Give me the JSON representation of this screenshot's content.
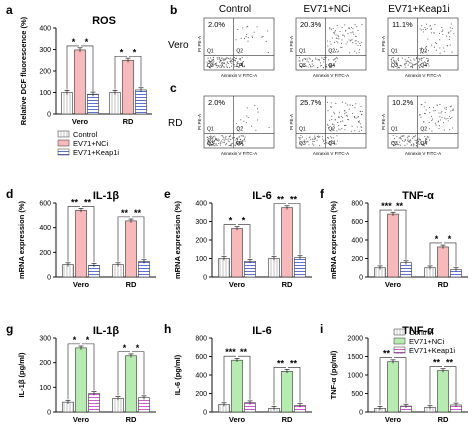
{
  "legend_labels": [
    "Control",
    "EV71+NCi",
    "EV71+Keap1i"
  ],
  "colors": {
    "control": "#ffffff",
    "pink": "#f7b9b9",
    "green": "#b6ecb0",
    "hatch_blue": "#5b6fd6",
    "hatch_pink": "#d05ad0",
    "control_hatch": "#888888"
  },
  "flow": {
    "row_labels": [
      "b",
      "c"
    ],
    "col_titles": [
      "Control",
      "EV71+NCi",
      "EV71+Keap1i"
    ],
    "rows": [
      {
        "label": "Vero",
        "percents": [
          "2.0%",
          "20.3%",
          "11.1%"
        ]
      },
      {
        "label": "RD",
        "percents": [
          "2.0%",
          "25.7%",
          "10.2%"
        ]
      }
    ],
    "x_axis": "Annexin V FITC-A",
    "y_axis": "PI PE-A",
    "quadrants": [
      "Q1",
      "Q2",
      "Q3",
      "Q4"
    ]
  },
  "chart_data": [
    {
      "panel": "a",
      "type": "bar",
      "title": "ROS",
      "ylabel": "Relative DCF fluorescence (%)",
      "ylim": [
        0,
        400
      ],
      "yticks": [
        0,
        100,
        200,
        300,
        400
      ],
      "categories": [
        "Vero",
        "RD"
      ],
      "series": [
        {
          "name": "Control",
          "values": [
            100,
            100
          ]
        },
        {
          "name": "EV71+NCi",
          "values": [
            298,
            250
          ]
        },
        {
          "name": "EV71+Keap1i",
          "values": [
            92,
            112
          ]
        }
      ],
      "significance": [
        [
          "*",
          "*"
        ],
        [
          "*",
          "*"
        ]
      ],
      "legend": "right"
    },
    {
      "panel": "d",
      "type": "bar",
      "title": "IL-1β",
      "ylabel": "mRNA expression (%)",
      "ylim": [
        0,
        600
      ],
      "yticks": [
        0,
        200,
        400,
        600
      ],
      "categories": [
        "Vero",
        "RD"
      ],
      "series": [
        {
          "name": "Control",
          "values": [
            100,
            100
          ]
        },
        {
          "name": "EV71+NCi",
          "values": [
            540,
            455
          ]
        },
        {
          "name": "EV71+Keap1i",
          "values": [
            95,
            125
          ]
        }
      ],
      "significance": [
        [
          "**",
          "**"
        ],
        [
          "**",
          "**"
        ]
      ]
    },
    {
      "panel": "e",
      "type": "bar",
      "title": "IL-6",
      "ylabel": "mRNA expression (%)",
      "ylim": [
        0,
        400
      ],
      "yticks": [
        0,
        100,
        200,
        300,
        400
      ],
      "categories": [
        "Vero",
        "RD"
      ],
      "series": [
        {
          "name": "Control",
          "values": [
            100,
            100
          ]
        },
        {
          "name": "EV71+NCi",
          "values": [
            262,
            375
          ]
        },
        {
          "name": "EV71+Keap1i",
          "values": [
            85,
            105
          ]
        }
      ],
      "significance": [
        [
          "*",
          "*"
        ],
        [
          "**",
          "**"
        ]
      ]
    },
    {
      "panel": "f",
      "type": "bar",
      "title": "TNF-α",
      "ylabel": "mRNA expression (%)",
      "ylim": [
        0,
        800
      ],
      "yticks": [
        0,
        200,
        400,
        600,
        800
      ],
      "categories": [
        "Vero",
        "RD"
      ],
      "series": [
        {
          "name": "Control",
          "values": [
            100,
            100
          ]
        },
        {
          "name": "EV71+NCi",
          "values": [
            680,
            325
          ]
        },
        {
          "name": "EV71+Keap1i",
          "values": [
            155,
            80
          ]
        }
      ],
      "significance": [
        [
          "***",
          "**"
        ],
        [
          "*",
          "*"
        ]
      ]
    },
    {
      "panel": "g",
      "type": "bar",
      "title": "IL-1β",
      "ylabel": "IL-1β (pg/ml)",
      "ylim": [
        0,
        300
      ],
      "yticks": [
        0,
        100,
        200,
        300
      ],
      "categories": [
        "Vero",
        "RD"
      ],
      "series": [
        {
          "name": "Control",
          "values": [
            40,
            55
          ]
        },
        {
          "name": "EV71+NCi",
          "values": [
            260,
            228
          ]
        },
        {
          "name": "EV71+Keap1i",
          "values": [
            75,
            58
          ]
        }
      ],
      "significance": [
        [
          "*",
          "*"
        ],
        [
          "*",
          "*"
        ]
      ]
    },
    {
      "panel": "h",
      "type": "bar",
      "title": "IL-6",
      "ylabel": "IL-6 (pg/ml)",
      "ylim": [
        0,
        800
      ],
      "yticks": [
        0,
        200,
        400,
        600,
        800
      ],
      "categories": [
        "Vero",
        "RD"
      ],
      "series": [
        {
          "name": "Control",
          "values": [
            80,
            40
          ]
        },
        {
          "name": "EV71+NCi",
          "values": [
            560,
            440
          ]
        },
        {
          "name": "EV71+Keap1i",
          "values": [
            100,
            70
          ]
        }
      ],
      "significance": [
        [
          "***",
          "**"
        ],
        [
          "**",
          "**"
        ]
      ]
    },
    {
      "panel": "i",
      "type": "bar",
      "title": "TNF-α",
      "ylabel": "TNF-α (pg/ml)",
      "ylim": [
        0,
        2000
      ],
      "yticks": [
        0,
        500,
        1000,
        1500,
        2000
      ],
      "categories": [
        "Vero",
        "RD"
      ],
      "series": [
        {
          "name": "Control",
          "values": [
            100,
            120
          ]
        },
        {
          "name": "EV71+NCi",
          "values": [
            1360,
            1120
          ]
        },
        {
          "name": "EV71+Keap1i",
          "values": [
            160,
            190
          ]
        }
      ],
      "significance": [
        [
          "**",
          "**"
        ],
        [
          "**",
          "**"
        ]
      ],
      "legend": "top-right"
    }
  ]
}
